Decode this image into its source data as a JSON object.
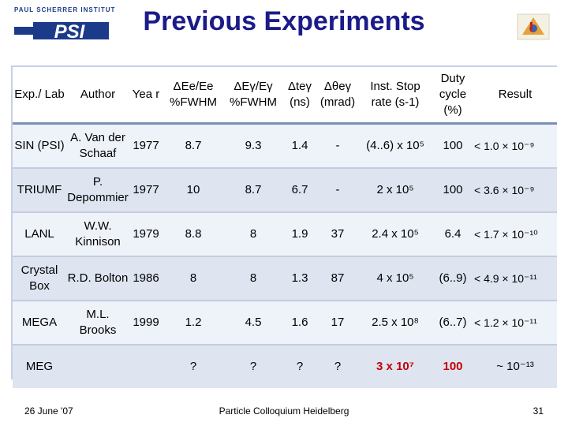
{
  "header": {
    "institute_label": "PAUL SCHERRER INSTITUT",
    "logo_text": "PSI",
    "title": "Previous Experiments"
  },
  "table": {
    "columns": [
      "Exp./ Lab",
      "Author",
      "Yea r",
      "ΔEe/Ee %FWHM",
      "ΔEγ/Eγ %FWHM",
      "Δteγ (ns)",
      "Δθeγ (mrad)",
      "Inst. Stop rate (s-1)",
      "Duty cycle (%)",
      "Result"
    ],
    "rows": [
      {
        "lab": "SIN (PSI)",
        "author": "A. Van der Schaaf",
        "year": "1977",
        "de": "8.7",
        "dg": "9.3",
        "dt": "1.4",
        "dth": "-",
        "rate": "(4..6) x 10⁵",
        "duty": "100",
        "result": "< 1.0 × 10⁻⁹"
      },
      {
        "lab": "TRIUMF",
        "author": "P. Depommier",
        "year": "1977",
        "de": "10",
        "dg": "8.7",
        "dt": "6.7",
        "dth": "-",
        "rate": "2 x 10⁵",
        "duty": "100",
        "result": "< 3.6 × 10⁻⁹"
      },
      {
        "lab": "LANL",
        "author": "W.W. Kinnison",
        "year": "1979",
        "de": "8.8",
        "dg": "8",
        "dt": "1.9",
        "dth": "37",
        "rate": "2.4 x 10⁵",
        "duty": "6.4",
        "result": "< 1.7 × 10⁻¹⁰"
      },
      {
        "lab": "Crystal Box",
        "author": "R.D. Bolton",
        "year": "1986",
        "de": "8",
        "dg": "8",
        "dt": "1.3",
        "dth": "87",
        "rate": "4 x 10⁵",
        "duty": "(6..9)",
        "result": "< 4.9 × 10⁻¹¹"
      },
      {
        "lab": "MEGA",
        "author": "M.L. Brooks",
        "year": "1999",
        "de": "1.2",
        "dg": "4.5",
        "dt": "1.6",
        "dth": "17",
        "rate": "2.5 x 10⁸",
        "duty": "(6..7)",
        "result": "< 1.2 × 10⁻¹¹"
      },
      {
        "lab": "MEG",
        "author": "",
        "year": "",
        "de": "?",
        "dg": "?",
        "dt": "?",
        "dth": "?",
        "rate": "3 x 10⁷",
        "duty": "100",
        "result": "~ 10⁻¹³"
      }
    ]
  },
  "footer": {
    "date": "26 June '07",
    "event": "Particle Colloquium Heidelberg",
    "page": "31"
  },
  "colors": {
    "title": "#1b1b8a",
    "highlight": "#c40000"
  }
}
